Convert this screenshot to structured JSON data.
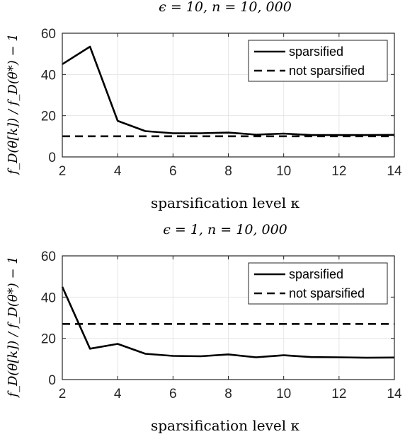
{
  "chart_data": [
    {
      "type": "line",
      "title": "ϵ = 10, n = 10, 000",
      "xlabel": "sparsification level κ",
      "ylabel": "f_D(θ[k]) / f_D(θ*) − 1",
      "xlim": [
        2,
        14
      ],
      "ylim": [
        0,
        60
      ],
      "xticks": [
        2,
        4,
        6,
        8,
        10,
        12,
        14
      ],
      "yticks": [
        0,
        20,
        40,
        60
      ],
      "grid": true,
      "legend_position": "top-right",
      "x": [
        2,
        3,
        4,
        5,
        6,
        7,
        8,
        9,
        10,
        11,
        12,
        13,
        14
      ],
      "series": [
        {
          "name": "sparsified",
          "style": "solid",
          "values": [
            45,
            53.5,
            17.5,
            12.5,
            11.5,
            11.5,
            11.8,
            10.8,
            11.3,
            10.6,
            10.6,
            10.6,
            10.7
          ]
        },
        {
          "name": "not sparsified",
          "style": "dashed",
          "values": [
            10,
            10,
            10,
            10,
            10,
            10,
            10,
            10,
            10,
            10,
            10,
            10,
            10
          ]
        }
      ]
    },
    {
      "type": "line",
      "title": "ϵ = 1, n = 10, 000",
      "xlabel": "sparsification level κ",
      "ylabel": "f_D(θ[k]) / f_D(θ*) − 1",
      "xlim": [
        2,
        14
      ],
      "ylim": [
        0,
        60
      ],
      "xticks": [
        2,
        4,
        6,
        8,
        10,
        12,
        14
      ],
      "yticks": [
        0,
        20,
        40,
        60
      ],
      "grid": true,
      "legend_position": "top-right",
      "x": [
        2,
        3,
        4,
        5,
        6,
        7,
        8,
        9,
        10,
        11,
        12,
        13,
        14
      ],
      "series": [
        {
          "name": "sparsified",
          "style": "solid",
          "values": [
            45,
            15,
            17.3,
            12.5,
            11.5,
            11.3,
            12.2,
            10.8,
            11.8,
            10.9,
            10.8,
            10.6,
            10.7
          ]
        },
        {
          "name": "not sparsified",
          "style": "dashed",
          "values": [
            27,
            27,
            27,
            27,
            27,
            27,
            27,
            27,
            27,
            27,
            27,
            27,
            27
          ]
        }
      ]
    }
  ],
  "colors": {
    "line": "#000000",
    "grid": "#e6e6e6",
    "axes": "#262626"
  }
}
